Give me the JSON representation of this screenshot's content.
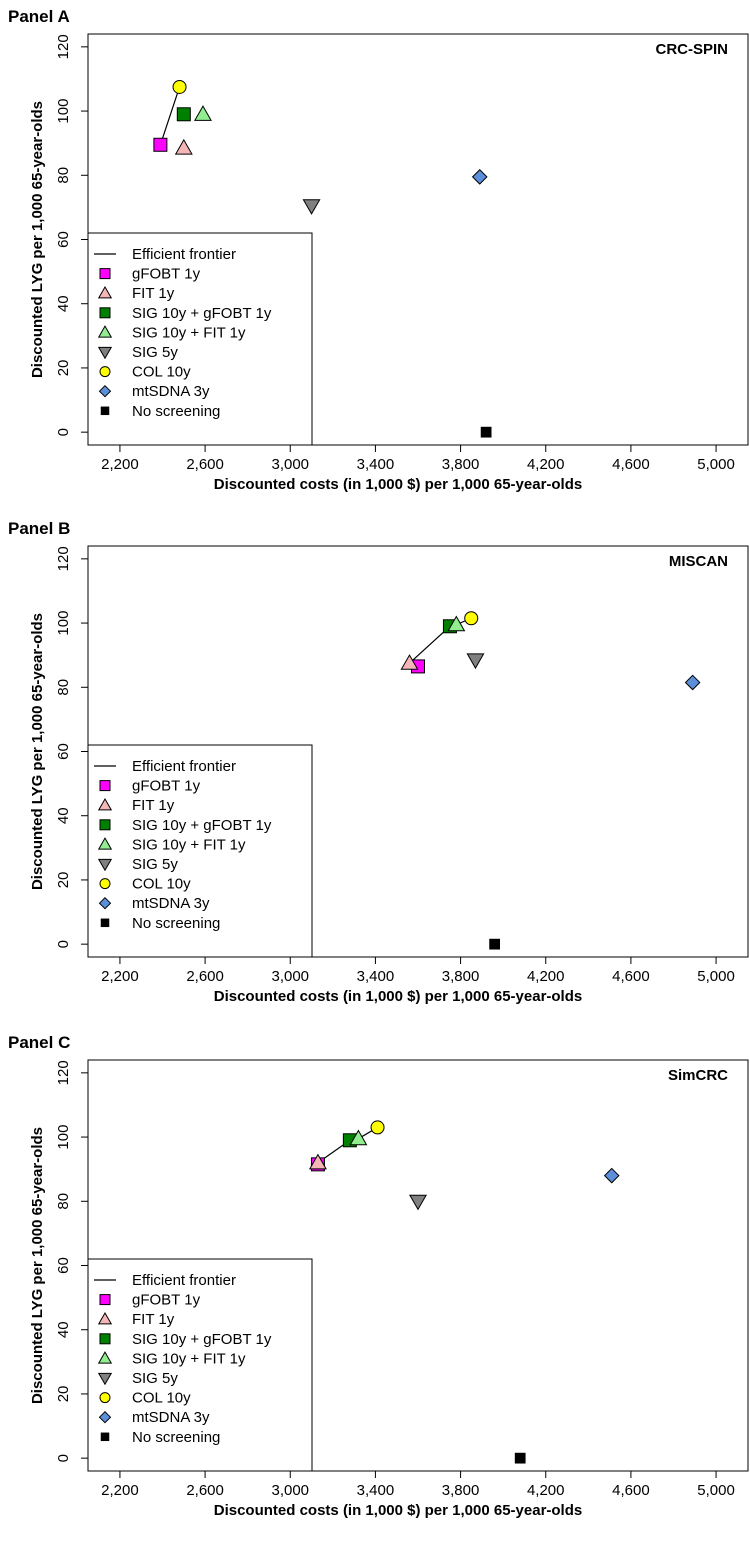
{
  "style": {
    "marker_colors": {
      "gfobt": "#ff00ff",
      "fit": "#f4b6b6",
      "sig_gfobt": "#008000",
      "sig_fit": "#90ee90",
      "sig5": "#808080",
      "col": "#ffff00",
      "mtsdna": "#5b8fd9",
      "none": "#000000"
    }
  },
  "legend": {
    "frontier": "Efficient frontier",
    "entries": [
      {
        "key": "gfobt",
        "label": "gFOBT 1y",
        "shape": "square"
      },
      {
        "key": "fit",
        "label": "FIT 1y",
        "shape": "triangle-up"
      },
      {
        "key": "sig_gfobt",
        "label": "SIG 10y + gFOBT 1y",
        "shape": "square"
      },
      {
        "key": "sig_fit",
        "label": "SIG 10y + FIT 1y",
        "shape": "triangle-up"
      },
      {
        "key": "sig5",
        "label": "SIG 5y",
        "shape": "triangle-down"
      },
      {
        "key": "col",
        "label": "COL 10y",
        "shape": "circle"
      },
      {
        "key": "mtsdna",
        "label": "mtSDNA 3y",
        "shape": "diamond"
      },
      {
        "key": "none",
        "label": "No screening",
        "shape": "square-small"
      }
    ]
  },
  "chart_data": [
    {
      "panel_label": "Panel A",
      "model": "CRC-SPIN",
      "type": "scatter",
      "xlabel": "Discounted costs (in 1,000 $) per 1,000 65-year-olds",
      "ylabel": "Discounted LYG per 1,000 65-year-olds",
      "xlim": [
        2050,
        5150
      ],
      "ylim": [
        -4,
        124
      ],
      "x_ticks": [
        2200,
        2600,
        3000,
        3400,
        3800,
        4200,
        4600,
        5000
      ],
      "x_tick_labels": [
        "2,200",
        "2,600",
        "3,000",
        "3,400",
        "3,800",
        "4,200",
        "4,600",
        "5,000"
      ],
      "y_ticks": [
        0,
        20,
        40,
        60,
        80,
        100,
        120
      ],
      "y_tick_labels": [
        "0",
        "20",
        "40",
        "60",
        "80",
        "100",
        "120"
      ],
      "points": [
        {
          "key": "gfobt",
          "x": 2390,
          "y": 89.5
        },
        {
          "key": "fit",
          "x": 2500,
          "y": 88.5
        },
        {
          "key": "sig_gfobt",
          "x": 2500,
          "y": 99
        },
        {
          "key": "sig_fit",
          "x": 2590,
          "y": 99
        },
        {
          "key": "sig5",
          "x": 3100,
          "y": 70.5
        },
        {
          "key": "col",
          "x": 2480,
          "y": 107.5
        },
        {
          "key": "mtsdna",
          "x": 3890,
          "y": 79.5
        },
        {
          "key": "none",
          "x": 3920,
          "y": 0
        }
      ],
      "frontier": [
        [
          2390,
          89.5
        ],
        [
          2480,
          107.5
        ]
      ]
    },
    {
      "panel_label": "Panel B",
      "model": "MISCAN",
      "type": "scatter",
      "xlabel": "Discounted costs (in 1,000 $) per 1,000 65-year-olds",
      "ylabel": "Discounted LYG per 1,000 65-year-olds",
      "xlim": [
        2050,
        5150
      ],
      "ylim": [
        -4,
        124
      ],
      "x_ticks": [
        2200,
        2600,
        3000,
        3400,
        3800,
        4200,
        4600,
        5000
      ],
      "x_tick_labels": [
        "2,200",
        "2,600",
        "3,000",
        "3,400",
        "3,800",
        "4,200",
        "4,600",
        "5,000"
      ],
      "y_ticks": [
        0,
        20,
        40,
        60,
        80,
        100,
        120
      ],
      "y_tick_labels": [
        "0",
        "20",
        "40",
        "60",
        "80",
        "100",
        "120"
      ],
      "points": [
        {
          "key": "gfobt",
          "x": 3600,
          "y": 86.5
        },
        {
          "key": "fit",
          "x": 3560,
          "y": 87.5
        },
        {
          "key": "sig_gfobt",
          "x": 3750,
          "y": 99
        },
        {
          "key": "sig_fit",
          "x": 3780,
          "y": 99.5
        },
        {
          "key": "sig5",
          "x": 3870,
          "y": 88.5
        },
        {
          "key": "col",
          "x": 3850,
          "y": 101.5
        },
        {
          "key": "mtsdna",
          "x": 4890,
          "y": 81.5
        },
        {
          "key": "none",
          "x": 3960,
          "y": 0
        }
      ],
      "frontier": [
        [
          3560,
          87.5
        ],
        [
          3750,
          99
        ],
        [
          3780,
          99.5
        ],
        [
          3850,
          101.5
        ]
      ]
    },
    {
      "panel_label": "Panel C",
      "model": "SimCRC",
      "type": "scatter",
      "xlabel": "Discounted costs (in 1,000 $) per 1,000 65-year-olds",
      "ylabel": "Discounted LYG per 1,000 65-year-olds",
      "xlim": [
        2050,
        5150
      ],
      "ylim": [
        -4,
        124
      ],
      "x_ticks": [
        2200,
        2600,
        3000,
        3400,
        3800,
        4200,
        4600,
        5000
      ],
      "x_tick_labels": [
        "2,200",
        "2,600",
        "3,000",
        "3,400",
        "3,800",
        "4,200",
        "4,600",
        "5,000"
      ],
      "y_ticks": [
        0,
        20,
        40,
        60,
        80,
        100,
        120
      ],
      "y_tick_labels": [
        "0",
        "20",
        "40",
        "60",
        "80",
        "100",
        "120"
      ],
      "points": [
        {
          "key": "gfobt",
          "x": 3130,
          "y": 91.5
        },
        {
          "key": "fit",
          "x": 3130,
          "y": 92
        },
        {
          "key": "sig_gfobt",
          "x": 3280,
          "y": 99
        },
        {
          "key": "sig_fit",
          "x": 3320,
          "y": 99.5
        },
        {
          "key": "sig5",
          "x": 3600,
          "y": 80
        },
        {
          "key": "col",
          "x": 3410,
          "y": 103
        },
        {
          "key": "mtsdna",
          "x": 4510,
          "y": 88
        },
        {
          "key": "none",
          "x": 4080,
          "y": 0
        }
      ],
      "frontier": [
        [
          3130,
          92
        ],
        [
          3280,
          99
        ],
        [
          3320,
          99.5
        ],
        [
          3410,
          103
        ]
      ]
    }
  ]
}
